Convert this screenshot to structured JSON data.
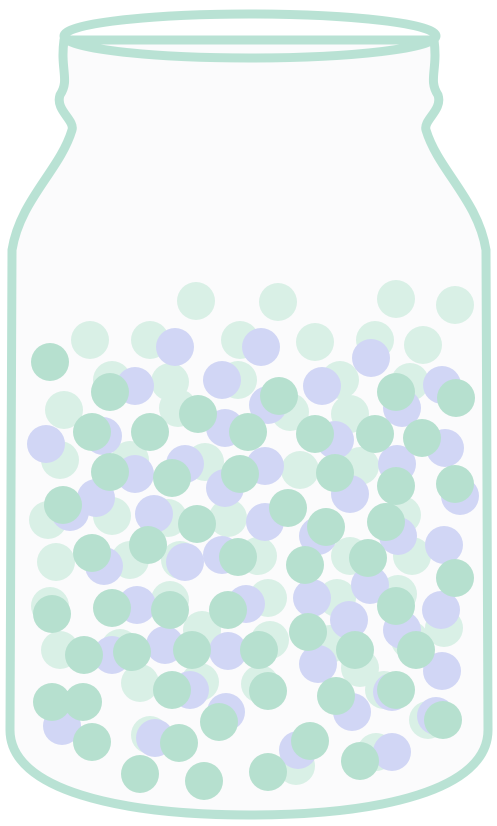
{
  "illustration": {
    "subject": "jar-of-marbles",
    "colors": {
      "outline": "#b9e2d4",
      "glass_fill": "#fbfbfc",
      "marble_green": "#b6e0cf",
      "marble_green_light": "#d9f0e6",
      "marble_lavender": "#d1d6f5"
    }
  }
}
